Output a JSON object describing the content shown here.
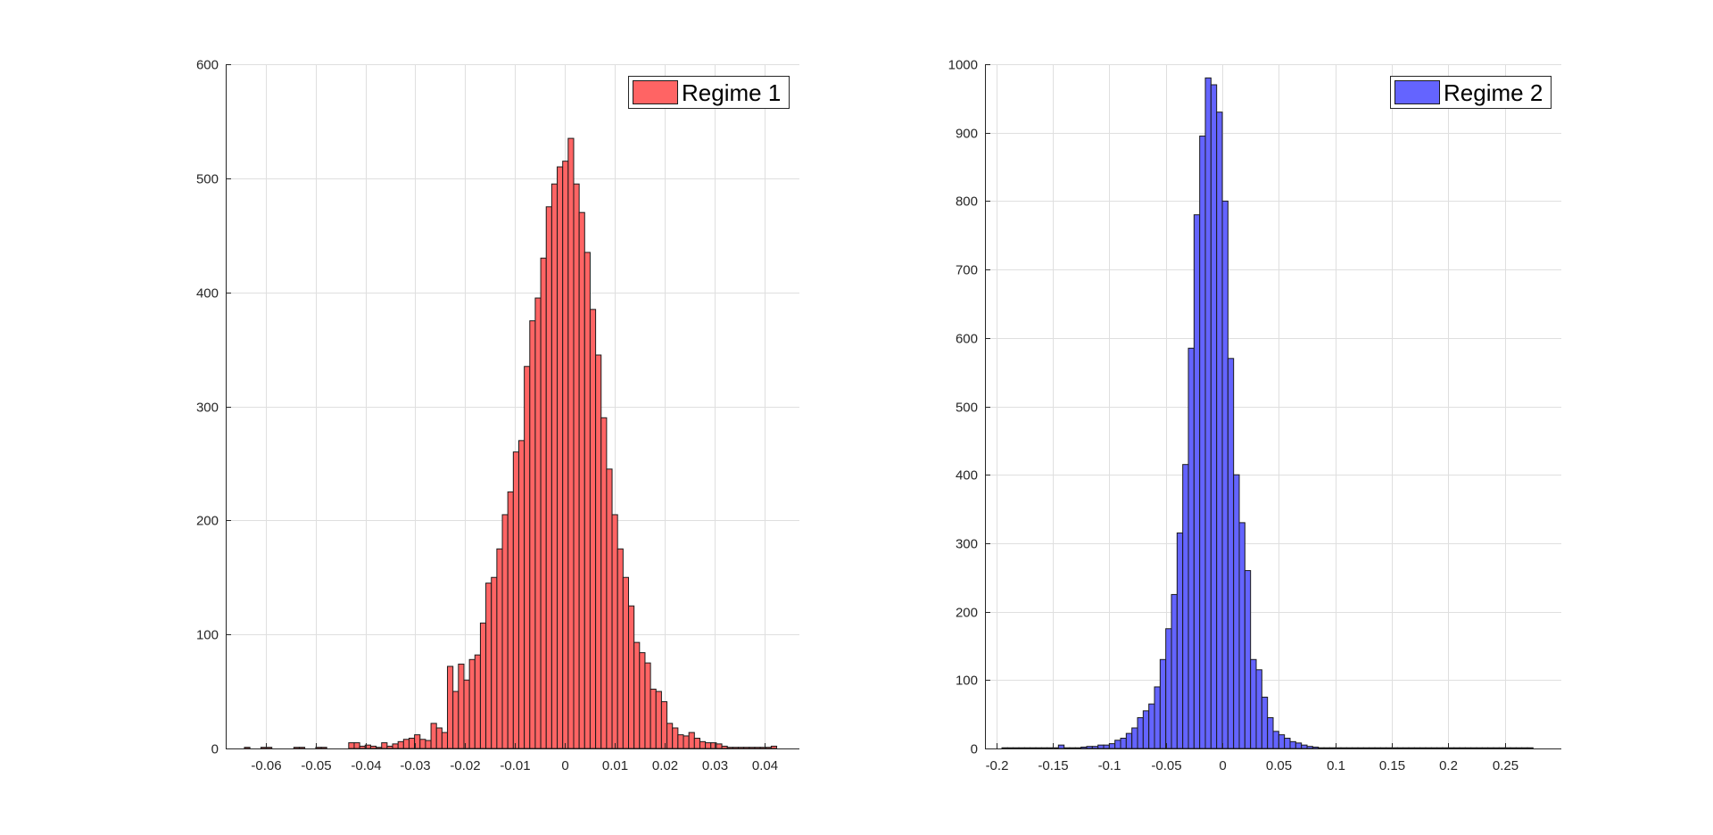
{
  "chart_data": [
    {
      "type": "bar",
      "subtype": "histogram",
      "title": "",
      "xlabel": "",
      "ylabel": "",
      "xlim": [
        -0.068,
        0.047
      ],
      "ylim": [
        0,
        600
      ],
      "xticks": [
        -0.06,
        -0.05,
        -0.04,
        -0.03,
        -0.02,
        -0.01,
        0,
        0.01,
        0.02,
        0.03,
        0.04
      ],
      "xtick_labels": [
        "-0.06",
        "-0.05",
        "-0.04",
        "-0.03",
        "-0.02",
        "-0.01",
        "0",
        "0.01",
        "0.02",
        "0.03",
        "0.04"
      ],
      "yticks": [
        0,
        100,
        200,
        300,
        400,
        500,
        600
      ],
      "ytick_labels": [
        "0",
        "100",
        "200",
        "300",
        "400",
        "500",
        "600"
      ],
      "grid": true,
      "legend": {
        "position": "top-right",
        "entries": [
          {
            "label": "Regime 1",
            "color": "#ff6464"
          }
        ]
      },
      "bar_color": "#ff6464",
      "edge_color": "#1a1a1a",
      "bin_width": 0.0011,
      "bin_centers": [
        -0.0637,
        -0.0604,
        -0.0593,
        -0.0538,
        -0.0527,
        -0.0494,
        -0.0483,
        -0.0428,
        -0.0417,
        -0.0406,
        -0.0395,
        -0.0384,
        -0.0373,
        -0.0362,
        -0.0351,
        -0.034,
        -0.0329,
        -0.0318,
        -0.0307,
        -0.0296,
        -0.0285,
        -0.0274,
        -0.0263,
        -0.0252,
        -0.0241,
        -0.023,
        -0.0219,
        -0.0208,
        -0.0197,
        -0.0186,
        -0.0175,
        -0.0164,
        -0.0153,
        -0.0142,
        -0.0131,
        -0.012,
        -0.0109,
        -0.0098,
        -0.0087,
        -0.0076,
        -0.0065,
        -0.0054,
        -0.0043,
        -0.0032,
        -0.0021,
        -0.001,
        0.0001,
        0.0012,
        0.0023,
        0.0034,
        0.0045,
        0.0056,
        0.0067,
        0.0078,
        0.0089,
        0.01,
        0.0111,
        0.0122,
        0.0133,
        0.0144,
        0.0155,
        0.0166,
        0.0177,
        0.0188,
        0.0199,
        0.021,
        0.0221,
        0.0232,
        0.0243,
        0.0254,
        0.0265,
        0.0276,
        0.0287,
        0.0298,
        0.0309,
        0.032,
        0.0331,
        0.0342,
        0.0353,
        0.0364,
        0.0375,
        0.0386,
        0.0397,
        0.0408,
        0.0419
      ],
      "values": [
        1,
        1,
        1,
        1,
        1,
        1,
        1,
        5,
        5,
        2,
        3,
        2,
        1,
        5,
        2,
        4,
        6,
        8,
        9,
        12,
        8,
        7,
        22,
        18,
        14,
        72,
        50,
        74,
        60,
        78,
        82,
        110,
        145,
        150,
        175,
        205,
        225,
        260,
        270,
        335,
        375,
        395,
        430,
        475,
        495,
        510,
        515,
        535,
        495,
        470,
        435,
        385,
        345,
        290,
        245,
        205,
        175,
        150,
        125,
        93,
        84,
        75,
        52,
        50,
        41,
        22,
        18,
        12,
        11,
        14,
        9,
        6,
        5,
        5,
        4,
        2,
        1,
        1,
        1,
        1,
        1,
        1,
        1,
        1,
        2
      ]
    },
    {
      "type": "bar",
      "subtype": "histogram",
      "title": "",
      "xlabel": "",
      "ylabel": "",
      "xlim": [
        -0.21,
        0.3
      ],
      "ylim": [
        0,
        1000
      ],
      "xticks": [
        -0.2,
        -0.15,
        -0.1,
        -0.05,
        0,
        0.05,
        0.1,
        0.15,
        0.2,
        0.25
      ],
      "xtick_labels": [
        "-0.2",
        "-0.15",
        "-0.1",
        "-0.05",
        "0",
        "0.05",
        "0.1",
        "0.15",
        "0.2",
        "0.25"
      ],
      "yticks": [
        0,
        100,
        200,
        300,
        400,
        500,
        600,
        700,
        800,
        900,
        1000
      ],
      "ytick_labels": [
        "0",
        "100",
        "200",
        "300",
        "400",
        "500",
        "600",
        "700",
        "800",
        "900",
        "1000"
      ],
      "grid": true,
      "legend": {
        "position": "top-right",
        "entries": [
          {
            "label": "Regime 2",
            "color": "#6464ff"
          }
        ]
      },
      "bar_color": "#6464ff",
      "edge_color": "#1a1a1a",
      "bin_width": 0.005,
      "bin_centers": [
        -0.1925,
        -0.1875,
        -0.1825,
        -0.1775,
        -0.1725,
        -0.1675,
        -0.1625,
        -0.1575,
        -0.1525,
        -0.1475,
        -0.1425,
        -0.1375,
        -0.1325,
        -0.1275,
        -0.1225,
        -0.1175,
        -0.1125,
        -0.1075,
        -0.1025,
        -0.0975,
        -0.0925,
        -0.0875,
        -0.0825,
        -0.0775,
        -0.0725,
        -0.0675,
        -0.0625,
        -0.0575,
        -0.0525,
        -0.0475,
        -0.0425,
        -0.0375,
        -0.0325,
        -0.0275,
        -0.0225,
        -0.0175,
        -0.0125,
        -0.0075,
        -0.0025,
        0.0025,
        0.0075,
        0.0125,
        0.0175,
        0.0225,
        0.0275,
        0.0325,
        0.0375,
        0.0425,
        0.0475,
        0.0525,
        0.0575,
        0.0625,
        0.0675,
        0.0725,
        0.0775,
        0.0825,
        0.0875,
        0.0925,
        0.0975,
        0.1025,
        0.1075,
        0.1125,
        0.1175,
        0.1225,
        0.1275,
        0.1325,
        0.1375,
        0.1425,
        0.1475,
        0.1525,
        0.1575,
        0.1625,
        0.1675,
        0.1725,
        0.1775,
        0.1825,
        0.1875,
        0.1925,
        0.1975,
        0.2025,
        0.2075,
        0.2125,
        0.2175,
        0.2225,
        0.2275,
        0.2325,
        0.2375,
        0.2425,
        0.2475,
        0.2525,
        0.2575,
        0.2625,
        0.2675,
        0.2725
      ],
      "values": [
        1,
        1,
        1,
        1,
        1,
        1,
        1,
        1,
        1,
        1,
        5,
        1,
        1,
        1,
        2,
        3,
        3,
        5,
        5,
        7,
        12,
        15,
        22,
        30,
        45,
        55,
        65,
        90,
        130,
        175,
        225,
        315,
        415,
        585,
        780,
        895,
        980,
        970,
        930,
        800,
        570,
        400,
        330,
        260,
        130,
        115,
        75,
        45,
        25,
        20,
        15,
        10,
        8,
        5,
        3,
        2,
        1,
        1,
        1,
        1,
        1,
        1,
        1,
        1,
        1,
        1,
        1,
        1,
        1,
        1,
        1,
        1,
        1,
        1,
        1,
        1,
        1,
        1,
        1,
        1,
        1,
        1,
        1,
        1,
        1,
        1,
        1,
        1,
        1,
        1,
        1,
        1,
        1,
        1
      ]
    }
  ]
}
